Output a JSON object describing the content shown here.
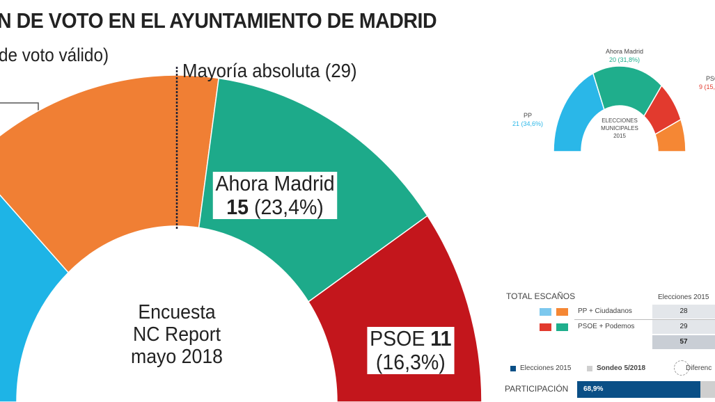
{
  "header": {
    "title": "N DE VOTO EN EL AYUNTAMIENTO DE MADRID",
    "subtitle": "de voto válido)",
    "majority": "Mayoría absoluta (29)"
  },
  "chart_data": [
    {
      "type": "pie",
      "style": "half-donut",
      "total_seats": 57,
      "majority_line": 29,
      "center_label": [
        "Encuesta",
        "NC Report",
        "mayo 2018"
      ],
      "slices": [
        {
          "seats": 15,
          "color": "#1eb4e6"
        },
        {
          "seats": 16,
          "color": "#f07f34"
        },
        {
          "name": "Ahora Madrid",
          "seats": 15,
          "pct": "(23,4%)",
          "color": "#1daa8a"
        },
        {
          "name": "PSOE",
          "seats": 11,
          "pct": "(16,3%)",
          "color": "#c3161c"
        }
      ]
    },
    {
      "type": "pie",
      "style": "half-donut",
      "total_seats": 57,
      "center_label": [
        "ELECCIONES",
        "MUNICIPALES",
        "2015"
      ],
      "slices": [
        {
          "name": "PP",
          "seats": 21,
          "label": "21 (34,6%)",
          "color": "#2ab7e8"
        },
        {
          "name": "Ahora Madrid",
          "seats": 20,
          "label": "20 (31,8%)",
          "color": "#1fae8c"
        },
        {
          "name": "PSO",
          "seats": 9,
          "label": "9 (15,",
          "color": "#e23a2e"
        },
        {
          "seats": 7,
          "color": "#f58734"
        }
      ]
    }
  ],
  "table": {
    "title": "TOTAL ESCAÑOS",
    "column": "Elecciones 2015",
    "rows": [
      {
        "label": "PP + Ciudadanos",
        "value": "28",
        "colors": [
          "#7cc8ee",
          "#f58734"
        ]
      },
      {
        "label": "PSOE + Podemos",
        "value": "29",
        "colors": [
          "#e23a2e",
          "#1fae8c"
        ]
      }
    ],
    "total": "57"
  },
  "legend": {
    "items": [
      {
        "label": "Elecciones 2015",
        "color": "#0a4f86"
      },
      {
        "label": "Sondeo 5/2018",
        "color": "#cfcfcf"
      },
      {
        "label": "Diferenc"
      }
    ]
  },
  "participation": {
    "label": "PARTICIPACIÓN",
    "value": "68,9%",
    "percent": 68.9,
    "color": "#0a4f86"
  }
}
